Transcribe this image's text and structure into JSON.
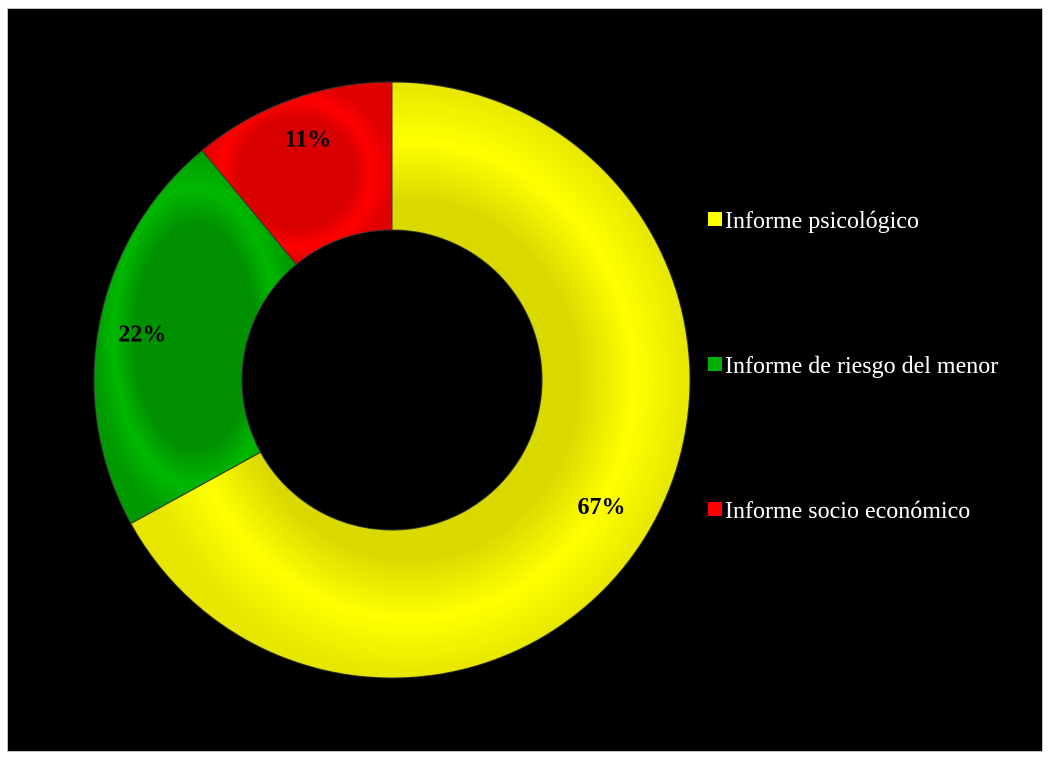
{
  "chart_data": {
    "type": "pie",
    "variant": "donut",
    "title": "",
    "slices": [
      {
        "label": "Informe psicológico",
        "value": 67,
        "display": "67%",
        "color": "#ffff00"
      },
      {
        "label": "Informe de riesgo del menor",
        "value": 22,
        "display": "22%",
        "color": "#00b000"
      },
      {
        "label": "Informe socio económico",
        "value": 11,
        "display": "11%",
        "color": "#ff0000"
      }
    ],
    "legend": {
      "position": "right"
    },
    "background_color": "#000000"
  }
}
